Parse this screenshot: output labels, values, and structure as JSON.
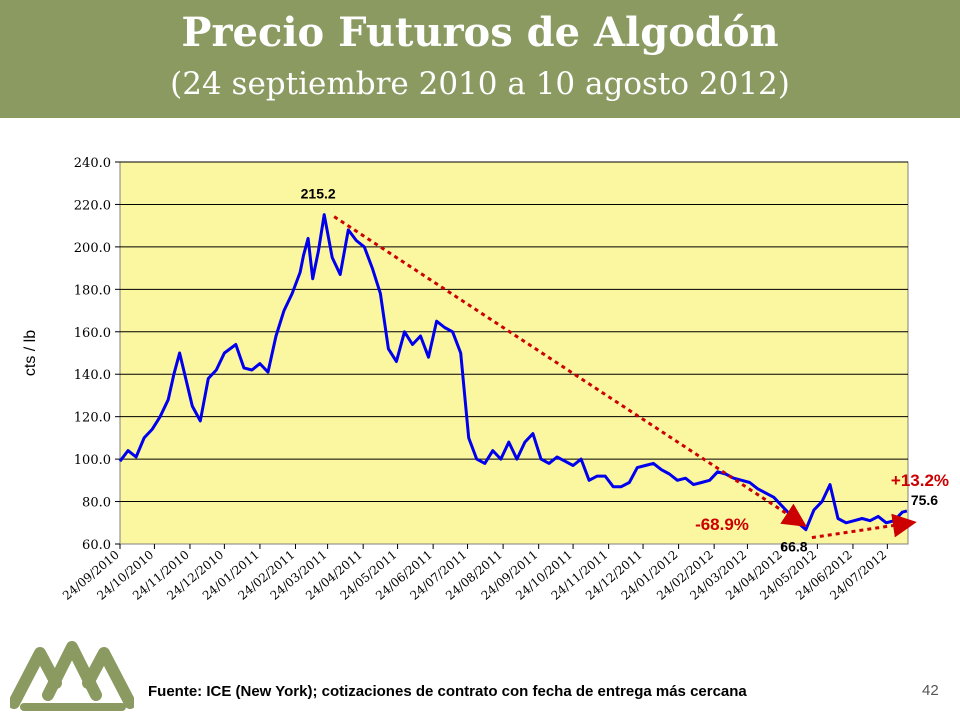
{
  "header": {
    "title": "Precio Futuros de Algodón",
    "subtitle": "(24 septiembre 2010 a 10 agosto 2012)"
  },
  "footer": {
    "source": "Fuente: ICE (New York); cotizaciones de contrato con fecha de entrega más cercana",
    "page_number": "42"
  },
  "colors": {
    "header_bg": "#8a9a60",
    "plot_bg": "#fbf6a0",
    "series": "#0000ee",
    "annotation_red": "#cc0000",
    "logo": "#8a9a60"
  },
  "chart_data": {
    "type": "line",
    "ylabel": "cts / lb",
    "ylim": [
      60,
      240
    ],
    "yticks": [
      "60.0",
      "80.0",
      "100.0",
      "120.0",
      "140.0",
      "160.0",
      "180.0",
      "200.0",
      "220.0",
      "240.0"
    ],
    "grid": "horizontal",
    "xticks": [
      "24/09/2010",
      "24/10/2010",
      "24/11/2010",
      "24/12/2010",
      "24/01/2011",
      "24/02/2011",
      "24/03/2011",
      "24/04/2011",
      "24/05/2011",
      "24/06/2011",
      "24/07/2011",
      "24/08/2011",
      "24/09/2011",
      "24/10/2011",
      "24/11/2011",
      "24/12/2011",
      "24/01/2012",
      "24/02/2012",
      "24/03/2012",
      "24/04/2012",
      "24/05/2012",
      "24/06/2012",
      "24/07/2012"
    ],
    "series": [
      {
        "x": [
          "2010-09-24",
          "2010-10-01",
          "2010-10-08",
          "2010-10-15",
          "2010-10-22",
          "2010-10-29",
          "2010-11-05",
          "2010-11-10",
          "2010-11-15",
          "2010-11-19",
          "2010-11-26",
          "2010-12-03",
          "2010-12-10",
          "2010-12-17",
          "2010-12-24",
          "2011-01-03",
          "2011-01-10",
          "2011-01-17",
          "2011-01-24",
          "2011-01-31",
          "2011-02-07",
          "2011-02-14",
          "2011-02-21",
          "2011-02-28",
          "2011-03-03",
          "2011-03-07",
          "2011-03-11",
          "2011-03-16",
          "2011-03-21",
          "2011-03-28",
          "2011-04-04",
          "2011-04-11",
          "2011-04-18",
          "2011-04-25",
          "2011-05-02",
          "2011-05-09",
          "2011-05-16",
          "2011-05-23",
          "2011-05-30",
          "2011-06-06",
          "2011-06-13",
          "2011-06-20",
          "2011-06-27",
          "2011-07-04",
          "2011-07-11",
          "2011-07-18",
          "2011-07-25",
          "2011-08-01",
          "2011-08-08",
          "2011-08-15",
          "2011-08-22",
          "2011-08-29",
          "2011-09-05",
          "2011-09-12",
          "2011-09-19",
          "2011-09-26",
          "2011-10-03",
          "2011-10-10",
          "2011-10-17",
          "2011-10-24",
          "2011-10-31",
          "2011-11-07",
          "2011-11-14",
          "2011-11-21",
          "2011-11-28",
          "2011-12-05",
          "2011-12-12",
          "2011-12-19",
          "2011-12-26",
          "2012-01-02",
          "2012-01-09",
          "2012-01-16",
          "2012-01-23",
          "2012-01-30",
          "2012-02-06",
          "2012-02-13",
          "2012-02-20",
          "2012-02-27",
          "2012-03-05",
          "2012-03-12",
          "2012-03-19",
          "2012-03-26",
          "2012-04-02",
          "2012-04-09",
          "2012-04-16",
          "2012-04-23",
          "2012-04-30",
          "2012-05-07",
          "2012-05-14",
          "2012-05-21",
          "2012-05-28",
          "2012-06-04",
          "2012-06-11",
          "2012-06-18",
          "2012-06-25",
          "2012-07-02",
          "2012-07-09",
          "2012-07-16",
          "2012-07-23",
          "2012-07-30",
          "2012-08-06",
          "2012-08-10"
        ],
        "y": [
          99.0,
          104.0,
          101.0,
          110.0,
          114.0,
          120.0,
          128.0,
          140.0,
          150.0,
          141.0,
          125.0,
          118.0,
          138.0,
          142.0,
          150.0,
          154.0,
          143.0,
          142.0,
          145.0,
          141.0,
          158.0,
          170.0,
          178.0,
          188.0,
          196.0,
          204.0,
          185.0,
          198.0,
          215.2,
          195.0,
          187.0,
          208.0,
          203.0,
          200.0,
          190.0,
          178.0,
          152.0,
          146.0,
          160.0,
          154.0,
          158.0,
          148.0,
          165.0,
          162.0,
          160.0,
          150.0,
          110.0,
          100.0,
          98.0,
          104.0,
          100.0,
          108.0,
          100.0,
          108.0,
          112.0,
          100.0,
          98.0,
          101.0,
          99.0,
          97.0,
          100.0,
          90.0,
          92.0,
          92.0,
          87.0,
          87.0,
          89.0,
          96.0,
          97.0,
          98.0,
          95.0,
          93.0,
          90.0,
          91.0,
          88.0,
          89.0,
          90.0,
          94.0,
          93.0,
          91.0,
          90.0,
          89.0,
          86.0,
          84.0,
          82.0,
          78.0,
          74.0,
          70.0,
          66.8,
          76.0,
          80.0,
          88.0,
          72.0,
          70.0,
          71.0,
          72.0,
          71.0,
          73.0,
          70.0,
          71.0,
          75.0,
          75.6
        ]
      }
    ],
    "annotations": {
      "peak": "215.2",
      "low": "66.8",
      "last": "75.6",
      "decline": "-68.9%",
      "rise": "+13.2%"
    }
  }
}
